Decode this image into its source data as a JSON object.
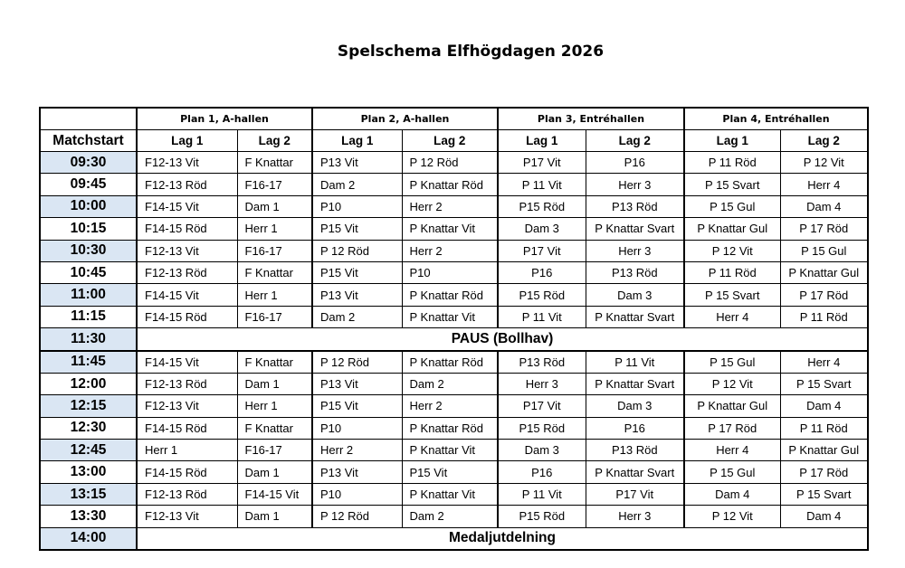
{
  "title": "Spelschema Elfhögdagen 2026",
  "header": {
    "matchstart": "Matchstart",
    "plans": [
      "Plan 1, A-hallen",
      "Plan 2, A-hallen",
      "Plan 3, Entréhallen",
      "Plan 4, Entréhallen"
    ],
    "lag1": "Lag 1",
    "lag2": "Lag 2"
  },
  "shade_color": "#dae6f3",
  "rows": [
    {
      "time": "09:30",
      "shaded": true,
      "teams": [
        "F12-13 Vit",
        "F Knattar",
        "P13 Vit",
        "P 12 Röd",
        "P17 Vit",
        "P16",
        "P 11 Röd",
        "P 12 Vit"
      ]
    },
    {
      "time": "09:45",
      "shaded": false,
      "teams": [
        "F12-13 Röd",
        "F16-17",
        "Dam 2",
        "P Knattar Röd",
        "P 11 Vit",
        "Herr 3",
        "P 15 Svart",
        "Herr 4"
      ]
    },
    {
      "time": "10:00",
      "shaded": true,
      "teams": [
        "F14-15 Vit",
        "Dam 1",
        "P10",
        "Herr 2",
        "P15 Röd",
        "P13 Röd",
        "P 15 Gul",
        "Dam 4"
      ]
    },
    {
      "time": "10:15",
      "shaded": false,
      "teams": [
        "F14-15 Röd",
        "Herr 1",
        "P15 Vit",
        "P Knattar Vit",
        "Dam 3",
        "P Knattar Svart",
        "P Knattar Gul",
        "P 17 Röd"
      ]
    },
    {
      "time": "10:30",
      "shaded": true,
      "teams": [
        "F12-13 Vit",
        "F16-17",
        "P 12 Röd",
        "Herr 2",
        "P17 Vit",
        "Herr 3",
        "P 12 Vit",
        "P 15 Gul"
      ]
    },
    {
      "time": "10:45",
      "shaded": false,
      "teams": [
        "F12-13 Röd",
        "F Knattar",
        "P15 Vit",
        "P10",
        "P16",
        "P13 Röd",
        "P 11 Röd",
        "P Knattar Gul"
      ]
    },
    {
      "time": "11:00",
      "shaded": true,
      "teams": [
        "F14-15 Vit",
        "Herr 1",
        "P13 Vit",
        "P Knattar Röd",
        "P15 Röd",
        "Dam 3",
        "P 15 Svart",
        "P 17 Röd"
      ]
    },
    {
      "time": "11:15",
      "shaded": false,
      "teams": [
        "F14-15 Röd",
        "F16-17",
        "Dam 2",
        "P Knattar Vit",
        "P 11 Vit",
        "P Knattar Svart",
        "Herr 4",
        "P 11 Röd"
      ]
    },
    {
      "time": "11:30",
      "shaded": true,
      "note": "PAUS (Bollhav)"
    },
    {
      "time": "11:45",
      "shaded": true,
      "teams": [
        "F14-15 Vit",
        "F Knattar",
        "P 12 Röd",
        "P Knattar Röd",
        "P13 Röd",
        "P 11 Vit",
        "P 15 Gul",
        "Herr 4"
      ]
    },
    {
      "time": "12:00",
      "shaded": false,
      "teams": [
        "F12-13 Röd",
        "Dam 1",
        "P13 Vit",
        "Dam 2",
        "Herr 3",
        "P Knattar Svart",
        "P 12 Vit",
        "P 15 Svart"
      ]
    },
    {
      "time": "12:15",
      "shaded": true,
      "teams": [
        "F12-13 Vit",
        "Herr 1",
        "P15 Vit",
        "Herr 2",
        "P17 Vit",
        "Dam 3",
        "P Knattar Gul",
        "Dam 4"
      ]
    },
    {
      "time": "12:30",
      "shaded": false,
      "teams": [
        "F14-15 Röd",
        "F Knattar",
        "P10",
        "P Knattar Röd",
        "P15 Röd",
        "P16",
        "P 17 Röd",
        "P 11 Röd"
      ]
    },
    {
      "time": "12:45",
      "shaded": true,
      "teams": [
        "Herr 1",
        "F16-17",
        "Herr 2",
        "P Knattar Vit",
        "Dam 3",
        "P13 Röd",
        "Herr 4",
        "P Knattar Gul"
      ]
    },
    {
      "time": "13:00",
      "shaded": false,
      "teams": [
        "F14-15 Röd",
        "Dam 1",
        "P13 Vit",
        "P15 Vit",
        "P16",
        "P Knattar Svart",
        "P 15 Gul",
        "P 17 Röd"
      ]
    },
    {
      "time": "13:15",
      "shaded": true,
      "teams": [
        "F12-13 Röd",
        "F14-15 Vit",
        "P10",
        "P Knattar Vit",
        "P 11 Vit",
        "P17 Vit",
        "Dam 4",
        "P 15 Svart"
      ]
    },
    {
      "time": "13:30",
      "shaded": false,
      "teams": [
        "F12-13 Vit",
        "Dam 1",
        "P 12 Röd",
        "Dam 2",
        "P15 Röd",
        "Herr 3",
        "P 12 Vit",
        "Dam 4"
      ]
    },
    {
      "time": "14:00",
      "shaded": true,
      "note": "Medaljutdelning"
    }
  ]
}
